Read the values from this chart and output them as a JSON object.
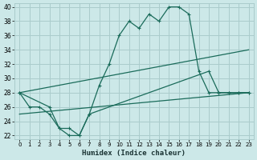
{
  "xlabel": "Humidex (Indice chaleur)",
  "bg_color": "#cce8e8",
  "grid_color": "#aacccc",
  "line_color": "#1a6b5a",
  "xlim": [
    -0.5,
    23.5
  ],
  "ylim": [
    21.5,
    40.5
  ],
  "xticks": [
    0,
    1,
    2,
    3,
    4,
    5,
    6,
    7,
    8,
    9,
    10,
    11,
    12,
    13,
    14,
    15,
    16,
    17,
    18,
    19,
    20,
    21,
    22,
    23
  ],
  "yticks": [
    22,
    24,
    26,
    28,
    30,
    32,
    34,
    36,
    38,
    40
  ],
  "line1_x": [
    0,
    1,
    2,
    3,
    4,
    5,
    6,
    7,
    8,
    9,
    10,
    11,
    12,
    13,
    14,
    15,
    16,
    17,
    18,
    19,
    20,
    21,
    22,
    23
  ],
  "line1_y": [
    28,
    26,
    26,
    25,
    23,
    22,
    22,
    25,
    29,
    32,
    36,
    38,
    37,
    39,
    38,
    40,
    40,
    39,
    31,
    28,
    28,
    28,
    28,
    28
  ],
  "line2_x": [
    0,
    3,
    4,
    5,
    6,
    7,
    19,
    20,
    21,
    22,
    23
  ],
  "line2_y": [
    28,
    26,
    23,
    23,
    22,
    25,
    31,
    28,
    28,
    28,
    28
  ],
  "line3_x": [
    0,
    23
  ],
  "line3_y": [
    28,
    34
  ],
  "line4_x": [
    0,
    23
  ],
  "line4_y": [
    25,
    28
  ]
}
